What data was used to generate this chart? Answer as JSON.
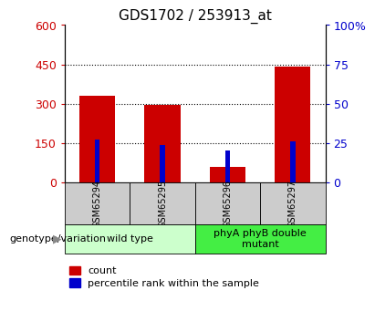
{
  "title": "GDS1702 / 253913_at",
  "samples": [
    "GSM65294",
    "GSM65295",
    "GSM65296",
    "GSM65297"
  ],
  "red_counts": [
    330,
    295,
    60,
    440
  ],
  "blue_percentiles": [
    27,
    24,
    20,
    26
  ],
  "blue_percentile_scale": 6.0,
  "left_ylim": [
    0,
    600
  ],
  "left_yticks": [
    0,
    150,
    300,
    450,
    600
  ],
  "right_ylim": [
    0,
    100
  ],
  "right_yticks": [
    0,
    25,
    50,
    75,
    100
  ],
  "right_yticklabels": [
    "0",
    "25",
    "50",
    "75",
    "100%"
  ],
  "left_color": "#cc0000",
  "right_color": "#0000cc",
  "red_bar_width": 0.55,
  "blue_bar_width": 0.08,
  "groups": [
    {
      "label": "wild type",
      "samples": [
        0,
        1
      ],
      "color": "#ccffcc"
    },
    {
      "label": "phyA phyB double\nmutant",
      "samples": [
        2,
        3
      ],
      "color": "#44ee44"
    }
  ],
  "genotype_label": "genotype/variation",
  "legend_count": "count",
  "legend_percentile": "percentile rank within the sample",
  "tick_label_color_left": "#cc0000",
  "tick_label_color_right": "#0000cc",
  "sample_box_color": "#cccccc",
  "title_fontsize": 11,
  "tick_fontsize": 9,
  "sample_fontsize": 7,
  "group_fontsize": 8,
  "legend_fontsize": 8,
  "genotype_fontsize": 8
}
